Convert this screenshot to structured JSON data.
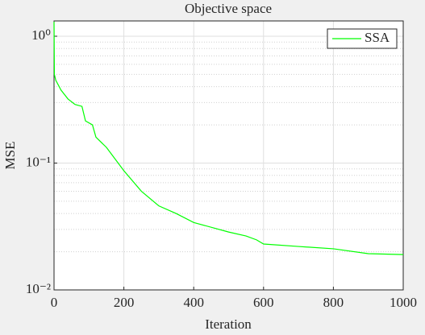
{
  "chart_data": {
    "type": "line",
    "title": "Objective space",
    "x_label": "Iteration",
    "y_label": "MSE",
    "x": [
      0,
      1,
      5,
      20,
      40,
      60,
      80,
      90,
      110,
      120,
      150,
      200,
      250,
      300,
      350,
      400,
      500,
      550,
      580,
      600,
      700,
      800,
      900,
      1000
    ],
    "series": [
      {
        "name": "SSA",
        "color": "#00ff00",
        "values": [
          1.3,
          0.5,
          0.45,
          0.376,
          0.32,
          0.29,
          0.28,
          0.215,
          0.2,
          0.16,
          0.133,
          0.087,
          0.06,
          0.046,
          0.04,
          0.034,
          0.0286,
          0.0266,
          0.0248,
          0.023,
          0.022,
          0.0211,
          0.0193,
          0.019
        ]
      }
    ],
    "xlim": [
      0,
      1000
    ],
    "xticks": [
      0,
      200,
      400,
      600,
      800,
      1000
    ],
    "ylim": [
      0.01,
      1.32
    ],
    "y_scale": "log",
    "yticks": [
      {
        "value": 0.01,
        "label": "10⁻²"
      },
      {
        "value": 0.1,
        "label": "10⁻¹"
      },
      {
        "value": 1,
        "label": "10⁰"
      }
    ],
    "grid": true,
    "minor_grid": true,
    "legend_position": "top-right"
  }
}
